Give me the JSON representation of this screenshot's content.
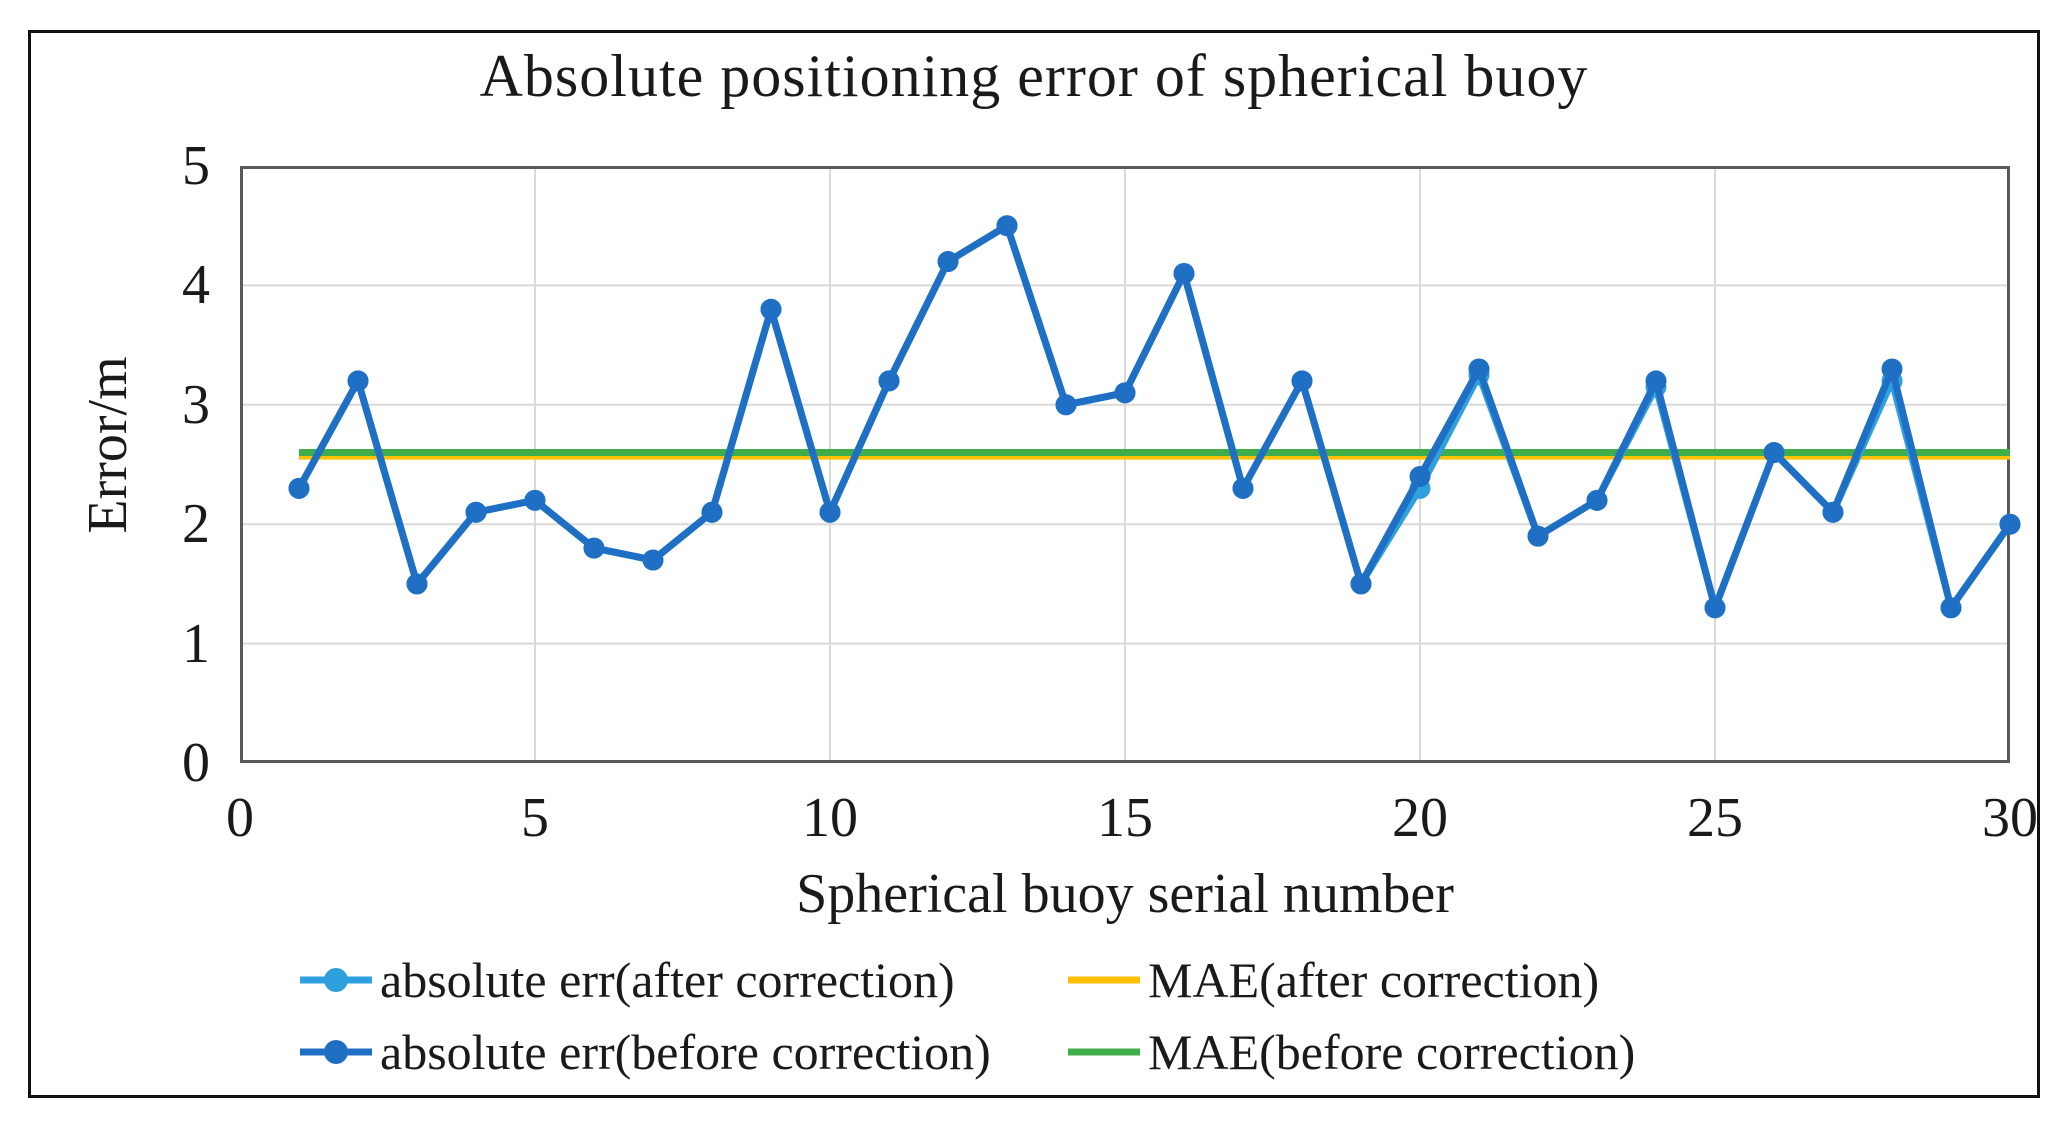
{
  "figure": {
    "background": "#ffffff",
    "border_color": "#111111",
    "frame_color": "#595959",
    "gridline_color": "#d9d9d9"
  },
  "chart_data": {
    "type": "line",
    "title": "Absolute positioning error of spherical buoy",
    "xlabel": "Spherical buoy serial number",
    "ylabel": "Error/m",
    "xlim": [
      0,
      30
    ],
    "ylim": [
      0,
      5
    ],
    "xticks": [
      0,
      5,
      10,
      15,
      20,
      25,
      30
    ],
    "yticks": [
      0,
      1,
      2,
      3,
      4,
      5
    ],
    "grid": true,
    "legend_position": "bottom",
    "x": [
      1,
      2,
      3,
      4,
      5,
      6,
      7,
      8,
      9,
      10,
      11,
      12,
      13,
      14,
      15,
      16,
      17,
      18,
      19,
      20,
      21,
      22,
      23,
      24,
      25,
      26,
      27,
      28,
      29,
      30
    ],
    "series": [
      {
        "name": "absolute err(after correction)",
        "kind": "line",
        "color": "#2ea0dd",
        "marker": "circle",
        "values": [
          2.3,
          3.2,
          1.5,
          2.1,
          2.2,
          1.8,
          1.7,
          2.1,
          3.8,
          2.1,
          3.2,
          4.2,
          4.5,
          3.0,
          3.1,
          4.1,
          2.3,
          3.2,
          1.5,
          2.3,
          3.25,
          1.9,
          2.2,
          3.15,
          1.3,
          2.6,
          2.1,
          3.2,
          1.3,
          2.0
        ]
      },
      {
        "name": "absolute err(before correction)",
        "kind": "line",
        "color": "#1f6fc4",
        "marker": "circle",
        "values": [
          2.3,
          3.2,
          1.5,
          2.1,
          2.2,
          1.8,
          1.7,
          2.1,
          3.8,
          2.1,
          3.2,
          4.2,
          4.5,
          3.0,
          3.1,
          4.1,
          2.3,
          3.2,
          1.5,
          2.4,
          3.3,
          1.9,
          2.2,
          3.2,
          1.3,
          2.6,
          2.1,
          3.3,
          1.3,
          2.0
        ]
      },
      {
        "name": "MAE(after correction)",
        "kind": "hline",
        "color": "#ffc000",
        "value": 2.57
      },
      {
        "name": "MAE(before correction)",
        "kind": "hline",
        "color": "#3fad49",
        "value": 2.6
      }
    ]
  }
}
